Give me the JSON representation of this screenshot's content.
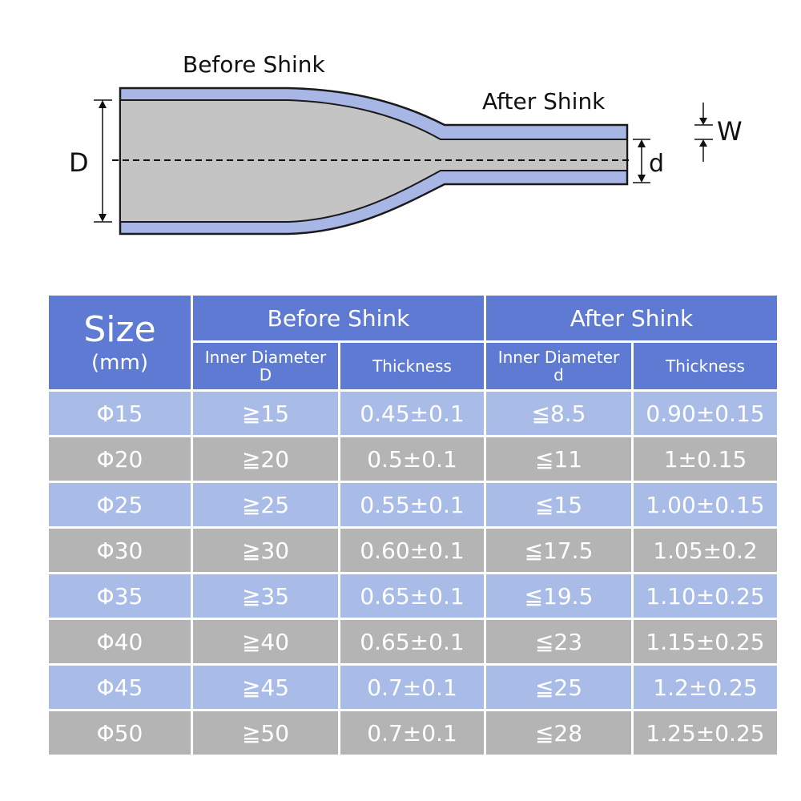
{
  "diagram": {
    "label_before": "Before Shink",
    "label_after": "After Shink",
    "label_D": "D",
    "label_d": "d",
    "label_W": "W",
    "colors": {
      "tube_wall": "#a8b6e6",
      "tube_core": "#c4c4c4",
      "outline": "#1a1a1a"
    }
  },
  "table": {
    "size_title": "Size",
    "size_unit": "(mm)",
    "before_header": "Before Shink",
    "after_header": "After Shink",
    "before_inner_label": "Inner Diameter",
    "before_inner_symbol": "D",
    "before_thickness": "Thickness",
    "after_inner_label": "Inner Diameter",
    "after_inner_symbol": "d",
    "after_thickness": "Thickness",
    "rows": [
      {
        "size": "Φ15",
        "before_id": "≧15",
        "before_t": "0.45±0.1",
        "after_id": "≦8.5",
        "after_t": "0.90±0.15"
      },
      {
        "size": "Φ20",
        "before_id": "≧20",
        "before_t": "0.5±0.1",
        "after_id": "≦11",
        "after_t": "1±0.15"
      },
      {
        "size": "Φ25",
        "before_id": "≧25",
        "before_t": "0.55±0.1",
        "after_id": "≦15",
        "after_t": "1.00±0.15"
      },
      {
        "size": "Φ30",
        "before_id": "≧30",
        "before_t": "0.60±0.1",
        "after_id": "≦17.5",
        "after_t": "1.05±0.2"
      },
      {
        "size": "Φ35",
        "before_id": "≧35",
        "before_t": "0.65±0.1",
        "after_id": "≦19.5",
        "after_t": "1.10±0.25"
      },
      {
        "size": "Φ40",
        "before_id": "≧40",
        "before_t": "0.65±0.1",
        "after_id": "≦23",
        "after_t": "1.15±0.25"
      },
      {
        "size": "Φ45",
        "before_id": "≧45",
        "before_t": "0.7±0.1",
        "after_id": "≦25",
        "after_t": "1.2±0.25"
      },
      {
        "size": "Φ50",
        "before_id": "≧50",
        "before_t": "0.7±0.1",
        "after_id": "≦28",
        "after_t": "1.25±0.25"
      }
    ],
    "colors": {
      "header": "#5e7ad2",
      "row_blue": "#a9bce8",
      "row_gray": "#b4b4b4"
    }
  }
}
